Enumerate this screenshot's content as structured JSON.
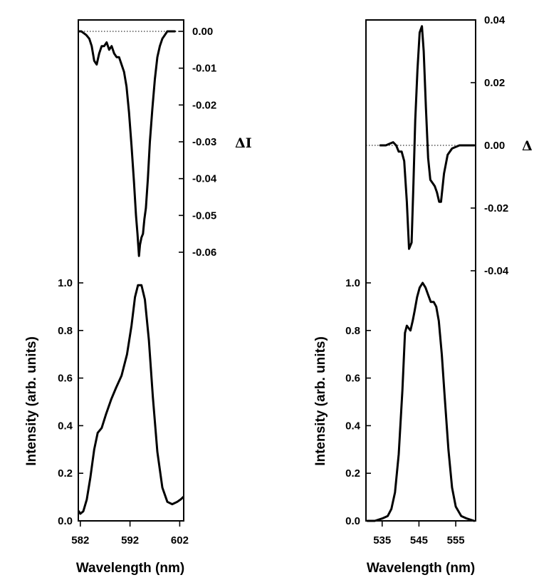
{
  "chart_data": [
    {
      "type": "line",
      "panel": "left-bottom",
      "xlabel": "Wavelength (nm)",
      "ylabel": "Intensity (arb. units)",
      "xlim": [
        581.6,
        602.8
      ],
      "ylim": [
        0,
        1.03
      ],
      "xticks": [
        "582",
        "592",
        "602"
      ],
      "yticks": [
        "0.0",
        "0.2",
        "0.4",
        "0.6",
        "0.8",
        "1.0"
      ],
      "x": [
        581.7,
        582.0,
        582.6,
        583.3,
        584.0,
        584.8,
        585.5,
        586.3,
        587.2,
        588.2,
        589.2,
        590.3,
        591.4,
        592.3,
        593.0,
        593.6,
        594.3,
        595.0,
        595.8,
        596.6,
        597.5,
        598.5,
        599.5,
        600.5,
        601.5,
        602.2,
        602.7
      ],
      "y": [
        0.04,
        0.03,
        0.04,
        0.09,
        0.18,
        0.3,
        0.37,
        0.39,
        0.45,
        0.51,
        0.56,
        0.61,
        0.7,
        0.82,
        0.94,
        0.99,
        0.99,
        0.93,
        0.76,
        0.52,
        0.29,
        0.14,
        0.08,
        0.07,
        0.08,
        0.09,
        0.1
      ]
    },
    {
      "type": "line",
      "panel": "left-top",
      "ylabel": "ΔI",
      "xlim": [
        581.6,
        602.8
      ],
      "ylim": [
        -0.065,
        0.002
      ],
      "yticks": [
        "0.00",
        "-0.01",
        "-0.02",
        "-0.03",
        "-0.04",
        "-0.05",
        "-0.06"
      ],
      "zero_line": true,
      "x": [
        581.7,
        582.2,
        582.7,
        583.2,
        583.8,
        584.3,
        584.8,
        585.3,
        585.8,
        586.3,
        586.8,
        587.3,
        587.8,
        588.3,
        588.8,
        589.3,
        589.8,
        590.3,
        590.8,
        591.3,
        591.8,
        592.3,
        592.8,
        593.2,
        593.5,
        593.8,
        594.0,
        594.3,
        594.6,
        594.9,
        595.2,
        595.6,
        596.0,
        596.5,
        597.0,
        597.5,
        598.0,
        598.5,
        599.0,
        599.5,
        600.0,
        601.0
      ],
      "y": [
        0.0,
        0.0,
        -0.0005,
        -0.001,
        -0.002,
        -0.004,
        -0.008,
        -0.009,
        -0.006,
        -0.004,
        -0.004,
        -0.003,
        -0.005,
        -0.004,
        -0.006,
        -0.007,
        -0.007,
        -0.009,
        -0.011,
        -0.015,
        -0.022,
        -0.031,
        -0.041,
        -0.05,
        -0.055,
        -0.061,
        -0.058,
        -0.056,
        -0.055,
        -0.051,
        -0.048,
        -0.04,
        -0.03,
        -0.021,
        -0.013,
        -0.007,
        -0.004,
        -0.002,
        -0.001,
        0.0,
        0.0,
        0.0
      ]
    },
    {
      "type": "line",
      "panel": "right-bottom",
      "xlabel": "Wavelength (nm)",
      "ylabel": "Intensity (arb. units)",
      "xlim": [
        530.6,
        560.4
      ],
      "ylim": [
        0,
        1.03
      ],
      "xticks": [
        "535",
        "545",
        "555"
      ],
      "yticks": [
        "0.0",
        "0.2",
        "0.4",
        "0.6",
        "0.8",
        "1.0"
      ],
      "x": [
        531.0,
        533.0,
        535.0,
        536.5,
        537.5,
        538.5,
        539.5,
        540.5,
        541.2,
        541.7,
        542.2,
        542.7,
        543.3,
        543.8,
        544.5,
        545.2,
        546.0,
        546.8,
        547.5,
        548.2,
        549.0,
        549.7,
        550.4,
        551.2,
        552.0,
        553.0,
        554.0,
        555.0,
        556.5,
        558.0,
        560.0
      ],
      "y": [
        0.0,
        0.0,
        0.01,
        0.02,
        0.05,
        0.12,
        0.28,
        0.55,
        0.79,
        0.82,
        0.81,
        0.8,
        0.84,
        0.88,
        0.94,
        0.98,
        1.0,
        0.98,
        0.95,
        0.92,
        0.92,
        0.9,
        0.84,
        0.7,
        0.52,
        0.3,
        0.14,
        0.06,
        0.02,
        0.01,
        0.0
      ]
    },
    {
      "type": "line",
      "panel": "right-top",
      "ylabel": "Δ",
      "xlim": [
        530.6,
        560.4
      ],
      "ylim": [
        -0.046,
        0.04
      ],
      "yticks": [
        "0.04",
        "0.02",
        "0.00",
        "-0.02",
        "-0.04"
      ],
      "zero_line": true,
      "x": [
        534.5,
        536.0,
        537.0,
        538.0,
        538.8,
        539.5,
        540.3,
        541.0,
        541.7,
        542.3,
        543.0,
        543.5,
        544.0,
        544.6,
        545.2,
        545.8,
        546.3,
        546.9,
        547.5,
        548.1,
        548.7,
        549.3,
        549.9,
        550.5,
        551.0,
        551.8,
        552.8,
        554.0,
        556.0,
        560.0
      ],
      "y": [
        0.0,
        0.0,
        0.0005,
        0.001,
        0.0,
        -0.002,
        -0.002,
        -0.005,
        -0.018,
        -0.033,
        -0.031,
        -0.012,
        0.008,
        0.024,
        0.036,
        0.038,
        0.03,
        0.012,
        -0.004,
        -0.011,
        -0.012,
        -0.013,
        -0.015,
        -0.018,
        -0.018,
        -0.009,
        -0.003,
        -0.001,
        0.0,
        0.0
      ]
    }
  ]
}
